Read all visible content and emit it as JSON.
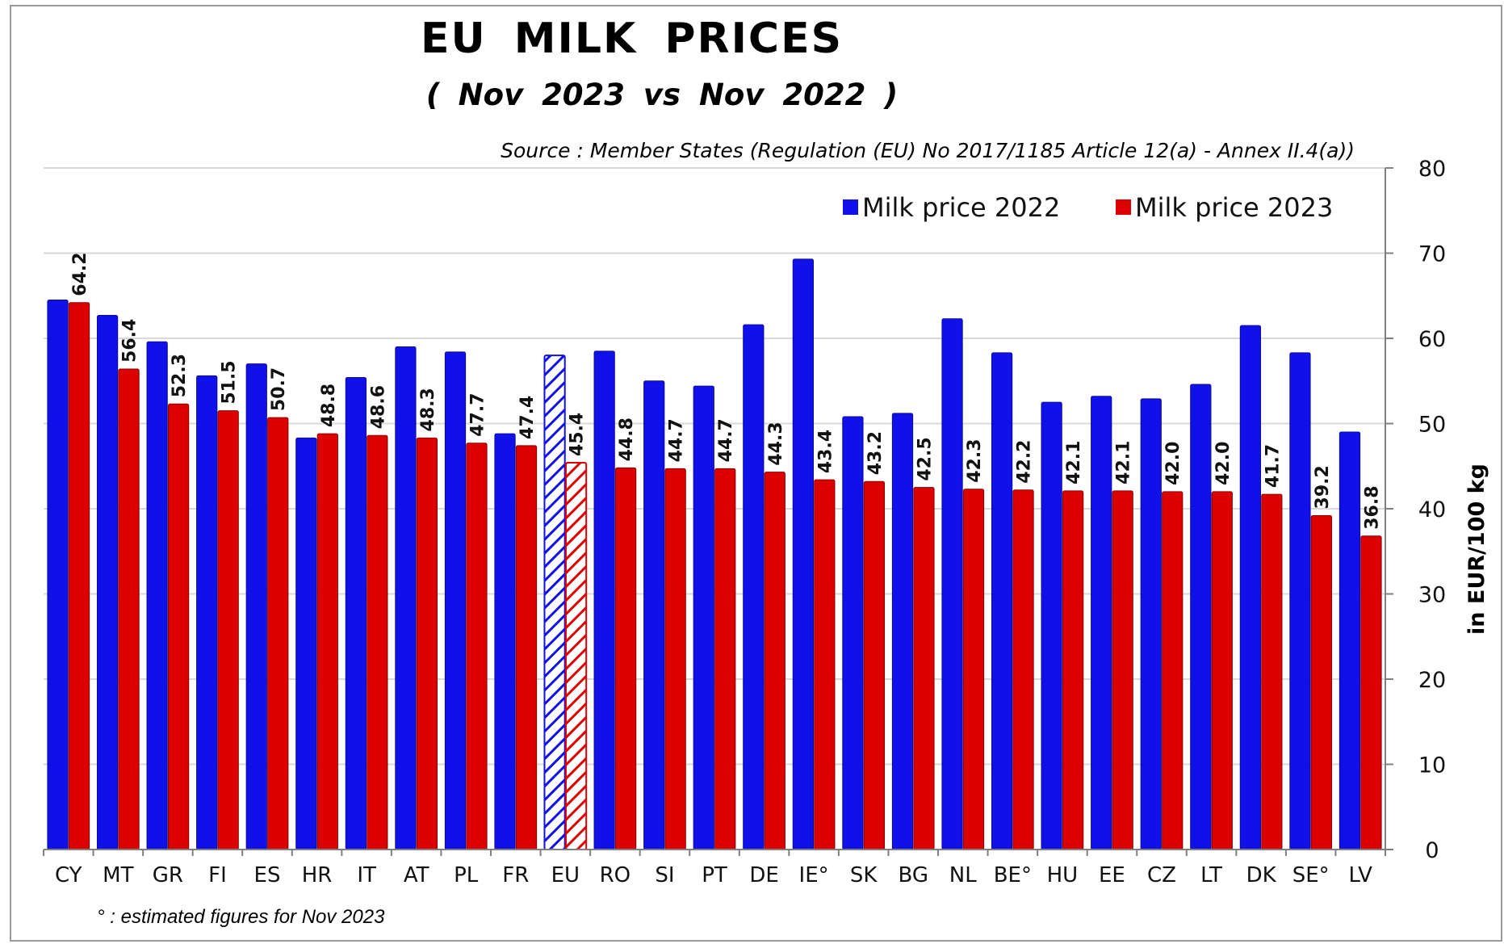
{
  "header": {
    "title": "EU  MILK  PRICES",
    "subtitle": "( Nov 2023   vs   Nov 2022 )",
    "source": "Source : Member States (Regulation (EU) No 2017/1185 Article 12(a) - Annex II.4(a))",
    "footnote": "° : estimated figures for Nov 2023"
  },
  "colors": {
    "series_2022": "#1010e8",
    "series_2023": "#dd0000",
    "grid": "#d9d9d9",
    "axis": "#808080"
  },
  "chart_data": {
    "type": "bar",
    "title": "EU  MILK  PRICES",
    "subtitle": "( Nov 2023   vs   Nov 2022 )",
    "ylabel": "in EUR/100 kg",
    "xlabel": "",
    "ylim": [
      0,
      80
    ],
    "yticks": [
      0,
      10,
      20,
      30,
      40,
      50,
      60,
      70,
      80
    ],
    "y_axis_side": "right",
    "grid": true,
    "legend_position": "top-right",
    "categories": [
      "CY",
      "MT",
      "GR",
      "FI",
      "ES",
      "HR",
      "IT",
      "AT",
      "PL",
      "FR",
      "EU",
      "RO",
      "SI",
      "PT",
      "DE",
      "IE°",
      "SK",
      "BG",
      "NL",
      "BE°",
      "HU",
      "EE",
      "CZ",
      "LT",
      "DK",
      "SE°",
      "LV"
    ],
    "hatched_category": "EU",
    "series": [
      {
        "name": "Milk price 2022",
        "values": [
          64.5,
          62.7,
          59.6,
          55.6,
          57.0,
          48.3,
          55.4,
          59.0,
          58.4,
          48.8,
          58.0,
          58.5,
          55.0,
          54.4,
          61.6,
          69.3,
          50.8,
          51.2,
          62.3,
          58.3,
          52.5,
          53.2,
          52.9,
          54.6,
          61.5,
          58.3,
          49.0
        ]
      },
      {
        "name": "Milk price 2023",
        "values": [
          64.2,
          56.4,
          52.3,
          51.5,
          50.7,
          48.8,
          48.6,
          48.3,
          47.7,
          47.4,
          45.4,
          44.8,
          44.7,
          44.7,
          44.3,
          43.4,
          43.2,
          42.5,
          42.3,
          42.2,
          42.1,
          42.1,
          42.0,
          42.0,
          41.7,
          39.2,
          36.8
        ],
        "labels": [
          "64.2",
          "56.4",
          "52.3",
          "51.5",
          "50.7",
          "48.8",
          "48.6",
          "48.3",
          "47.7",
          "47.4",
          "45.4",
          "44.8",
          "44.7",
          "44.7",
          "44.3",
          "43.4",
          "43.2",
          "42.5",
          "42.3",
          "42.2",
          "42.1",
          "42.1",
          "42.0",
          "42.0",
          "41.7",
          "39.2",
          "36.8"
        ]
      }
    ]
  }
}
